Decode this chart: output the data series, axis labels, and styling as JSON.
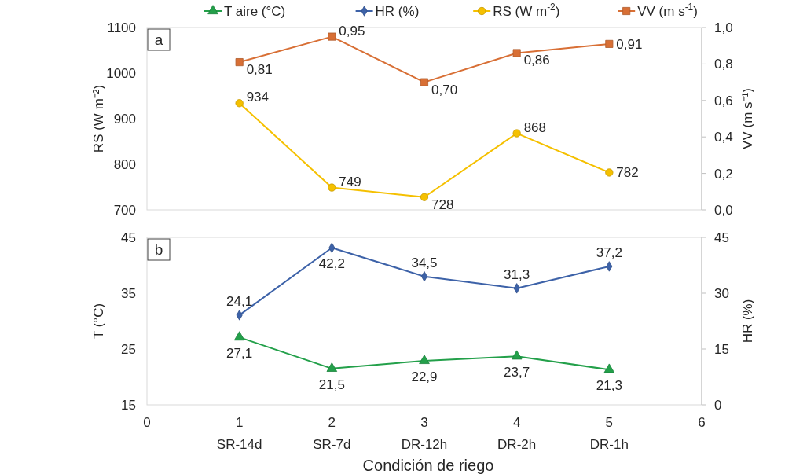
{
  "chart_data": [
    {
      "type": "line",
      "title": "a",
      "x": [
        1,
        2,
        3,
        4,
        5
      ],
      "xlim": [
        0,
        6
      ],
      "tick_labels": "y",
      "ylabel": "RS (W m⁻²)",
      "ylim": [
        700,
        1100
      ],
      "yticks": [
        700,
        800,
        900,
        1000,
        1100
      ],
      "y2label": "VV (m s⁻¹)",
      "y2lim": [
        0,
        1
      ],
      "y2ticks": [
        {
          "value": 0,
          "label": "0,0"
        },
        {
          "value": 0.2,
          "label": "0,2"
        },
        {
          "value": 0.4,
          "label": "0,4"
        },
        {
          "value": 0.6,
          "label": "0,6"
        },
        {
          "value": 0.8,
          "label": "0,8"
        },
        {
          "value": 1,
          "label": "1,0"
        }
      ],
      "legend": "top",
      "series": [
        {
          "name": "RS (W m$^{-2}$)",
          "color": "#f5c000",
          "marker": "circle",
          "values": [
            934,
            749,
            728,
            868,
            782
          ],
          "value_labels": [
            "934",
            "749",
            "728",
            "868",
            "782"
          ]
        },
        {
          "name": "VV (m s$^{-1}$)",
          "color": "#d86f35",
          "marker": "square",
          "axis": "y2",
          "values": [
            0.81,
            0.95,
            0.7,
            0.86,
            0.91
          ],
          "value_labels": [
            "0,81",
            "0,95",
            "0,70",
            "0,86",
            "0,91"
          ]
        }
      ]
    },
    {
      "type": "line",
      "title": "b",
      "x": [
        1,
        2,
        3,
        4,
        5
      ],
      "xlim": [
        0,
        6
      ],
      "xticks": [
        0,
        1,
        2,
        3,
        4,
        5,
        6
      ],
      "xlabel": "Condición de riego",
      "ylabel": "T (°C)",
      "ylim": [
        15,
        45
      ],
      "yticks": [
        15,
        25,
        35,
        45
      ],
      "y2label": "HR (%)",
      "y2lim": [
        0,
        45
      ],
      "y2ticks": [
        0,
        15,
        30,
        45
      ],
      "legend": "top",
      "annotations": [
        "SR-14d",
        "SR-7d",
        "DR-12h",
        "DR-2h",
        "DR-1h"
      ],
      "series": [
        {
          "name": "T aire (°C)",
          "color": "#23a04a",
          "marker": "triangle",
          "values": [
            27.1,
            21.5,
            22.9,
            23.7,
            21.3
          ],
          "value_labels": [
            "27,1",
            "21,5",
            "22,9",
            "23,7",
            "21,3"
          ]
        },
        {
          "name": "HR (%)",
          "color": "#3d62a8",
          "marker": "diamond",
          "axis": "y2",
          "values": [
            24.1,
            42.2,
            34.5,
            31.3,
            37.2
          ],
          "value_labels": [
            "24,1",
            "42,2",
            "34,5",
            "31,3",
            "37,2"
          ]
        }
      ]
    }
  ]
}
